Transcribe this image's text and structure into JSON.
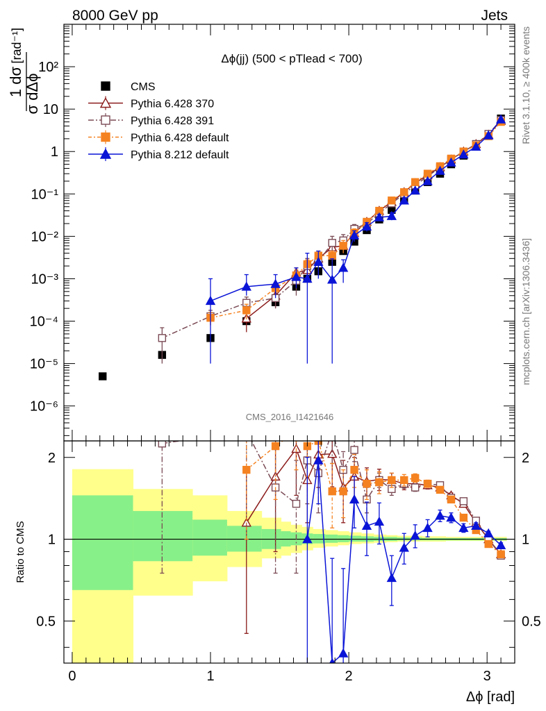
{
  "header": {
    "left_text": "8000 GeV pp",
    "right_text": "Jets"
  },
  "side_text": {
    "rivet": "Rivet 3.1.10, ≥ 400k events",
    "mcplots": "mcplots.cern.ch [arXiv:1306.3436]"
  },
  "watermark": "CMS_2016_I1421646",
  "colors": {
    "cms": "#000000",
    "pythia_6428_370": "#8b1a1a",
    "pythia_6428_391": "#7a4a55",
    "pythia_6428_default": "#f58220",
    "pythia_8212_default": "#0a14d6",
    "band_inner": "#88f088",
    "band_outer": "#ffff8c"
  },
  "chart_data": [
    {
      "type": "scatter",
      "panel": "main",
      "title": "Δϕ(jj) (500 < pTlead <  700)",
      "xlabel": "Δϕ [rad]",
      "ylabel_top": "1 dσ",
      "ylabel_bottom": "σ dΔϕ",
      "ylabel_unit": "[rad⁻¹]",
      "yscale": "log",
      "xlim": [
        -0.06,
        3.2
      ],
      "ylim": [
        1.5e-07,
        1000
      ],
      "ytick_labels": [
        "10⁻⁶",
        "10⁻⁵",
        "10⁻⁴",
        "10⁻³",
        "10⁻²",
        "10⁻¹",
        "1",
        "10",
        "10²"
      ],
      "legend_position": "top-left",
      "series": [
        {
          "name": "CMS",
          "x": [
            0.22,
            0.65,
            1.0,
            1.26,
            1.34,
            1.47,
            1.55,
            1.62,
            1.7,
            1.78,
            1.88,
            1.96,
            2.04,
            2.13,
            2.22,
            2.31,
            2.4,
            2.48,
            2.57,
            2.66,
            2.74,
            2.83,
            2.92,
            3.01,
            3.1
          ],
          "y": [
            5e-06,
            1.6e-05,
            4e-05,
            0.0001,
            null,
            0.00028,
            null,
            0.00065,
            0.001,
            0.0015,
            0.0025,
            0.0045,
            0.0075,
            0.014,
            0.025,
            0.042,
            0.07,
            0.12,
            0.19,
            0.3,
            0.5,
            0.8,
            1.3,
            2.4,
            6.0
          ]
        },
        {
          "name": "Pythia 6.428 370",
          "x": [
            1.26,
            1.47,
            1.62,
            1.7,
            1.78,
            1.88,
            1.96,
            2.04,
            2.13,
            2.22,
            2.31,
            2.4,
            2.48,
            2.57,
            2.66,
            2.74,
            2.83,
            2.92,
            3.01,
            3.1
          ],
          "y": [
            0.000115,
            0.0004,
            0.0014,
            0.0016,
            0.003,
            0.0055,
            0.006,
            0.012,
            0.022,
            0.04,
            0.065,
            0.11,
            0.18,
            0.28,
            0.43,
            0.65,
            1.0,
            1.5,
            2.5,
            5.3
          ],
          "yerr_low": [
            6e-05,
            0.0002,
            0.0004,
            0.0006,
            0.001,
            0.002,
            0.002,
            0.003,
            0.004,
            0.006,
            0.008,
            0.01,
            0.01,
            0.02,
            0.03,
            0.04,
            0.05,
            0.08,
            0.1,
            0.2
          ],
          "yerr_high": [
            6e-05,
            0.0002,
            0.0004,
            0.0006,
            0.001,
            0.002,
            0.002,
            0.003,
            0.004,
            0.006,
            0.008,
            0.01,
            0.01,
            0.02,
            0.03,
            0.04,
            0.05,
            0.08,
            0.1,
            0.2
          ]
        },
        {
          "name": "Pythia 6.428 391",
          "x": [
            0.65,
            1.0,
            1.26,
            1.47,
            1.62,
            1.7,
            1.78,
            1.88,
            1.96,
            2.04,
            2.13,
            2.22,
            2.31,
            2.4,
            2.48,
            2.57,
            2.66,
            2.74,
            2.83,
            2.92,
            3.01,
            3.1
          ],
          "y": [
            4e-05,
            0.00013,
            0.00027,
            0.00035,
            0.0009,
            0.002,
            0.0025,
            0.007,
            0.008,
            0.015,
            0.02,
            0.035,
            0.06,
            0.1,
            0.16,
            0.26,
            0.42,
            0.65,
            1.0,
            1.5,
            2.6,
            5.5
          ],
          "yerr_low": [
            3e-05,
            5e-05,
            0.0001,
            0.00015,
            0.0005,
            0.001,
            0.0012,
            0.003,
            0.003,
            0.004,
            0.005,
            0.006,
            0.008,
            0.01,
            0.012,
            0.02,
            0.03,
            0.04,
            0.05,
            0.08,
            0.1,
            0.2
          ],
          "yerr_high": [
            3e-05,
            5e-05,
            0.0001,
            0.00015,
            0.0005,
            0.001,
            0.0012,
            0.003,
            0.003,
            0.004,
            0.005,
            0.006,
            0.008,
            0.01,
            0.012,
            0.02,
            0.03,
            0.04,
            0.05,
            0.08,
            0.1,
            0.2
          ]
        },
        {
          "name": "Pythia 6.428 default",
          "x": [
            1.0,
            1.26,
            1.47,
            1.62,
            1.7,
            1.78,
            1.88,
            1.96,
            2.04,
            2.13,
            2.22,
            2.31,
            2.4,
            2.48,
            2.57,
            2.66,
            2.74,
            2.83,
            2.92,
            3.01,
            3.1
          ],
          "y": [
            0.00012,
            0.00018,
            0.0006,
            0.0012,
            0.0022,
            0.0035,
            0.0035,
            0.006,
            0.012,
            0.022,
            0.04,
            0.07,
            0.11,
            0.19,
            0.3,
            0.45,
            0.68,
            1.0,
            1.4,
            2.3,
            5.0
          ],
          "yerr_low": [
            4e-05,
            7e-05,
            0.0002,
            0.0004,
            0.0006,
            0.001,
            0.001,
            0.002,
            0.003,
            0.004,
            0.006,
            0.008,
            0.01,
            0.012,
            0.02,
            0.03,
            0.04,
            0.05,
            0.08,
            0.1,
            0.2
          ],
          "yerr_high": [
            4e-05,
            7e-05,
            0.0002,
            0.0004,
            0.0006,
            0.001,
            0.001,
            0.002,
            0.003,
            0.004,
            0.006,
            0.008,
            0.01,
            0.012,
            0.02,
            0.03,
            0.04,
            0.05,
            0.08,
            0.1,
            0.2
          ]
        },
        {
          "name": "Pythia 8.212 default",
          "x": [
            1.0,
            1.26,
            1.47,
            1.62,
            1.7,
            1.78,
            1.88,
            1.96,
            2.04,
            2.13,
            2.22,
            2.31,
            2.4,
            2.48,
            2.57,
            2.66,
            2.74,
            2.83,
            2.92,
            3.01,
            3.1
          ],
          "y": [
            0.0003,
            0.00065,
            0.00075,
            0.0011,
            0.001,
            0.0025,
            0.00095,
            0.0018,
            0.0105,
            0.017,
            0.028,
            0.03,
            0.07,
            0.12,
            0.2,
            0.35,
            0.55,
            0.85,
            1.3,
            2.4,
            5.7
          ],
          "yerr_low": [
            0.00029,
            0.00025,
            0.0004,
            0.0005,
            0.00099,
            0.0015,
            0.00094,
            0.001,
            0.003,
            0.004,
            0.005,
            0.006,
            0.01,
            0.012,
            0.02,
            0.03,
            0.04,
            0.05,
            0.08,
            0.1,
            0.2
          ],
          "yerr_high": [
            0.0007,
            0.0006,
            0.0005,
            0.0007,
            0.003,
            0.002,
            0.002,
            0.001,
            0.003,
            0.004,
            0.005,
            0.006,
            0.01,
            0.012,
            0.02,
            0.03,
            0.04,
            0.05,
            0.08,
            0.1,
            0.2
          ]
        }
      ]
    },
    {
      "type": "line",
      "panel": "ratio",
      "ylabel": "Ratio to CMS",
      "xlabel": "Δϕ [rad]",
      "xlim": [
        -0.06,
        3.2
      ],
      "ylim": [
        0.35,
        2.3
      ],
      "ytick_labels": [
        "0.5",
        "1",
        "2"
      ],
      "xtick_labels": [
        "0",
        "1",
        "2",
        "3"
      ],
      "reference_line": 1,
      "bands": {
        "x_edges": [
          0.0,
          0.44,
          0.87,
          1.12,
          1.37,
          1.51,
          1.58,
          1.66,
          1.74,
          1.83,
          1.92,
          2.0,
          2.09,
          2.18,
          2.27,
          2.35,
          2.44,
          2.53,
          2.61,
          2.7,
          2.79,
          2.88,
          2.96,
          3.05,
          3.14
        ],
        "inner_low": [
          0.65,
          0.83,
          0.87,
          0.9,
          0.92,
          0.94,
          0.95,
          0.96,
          0.965,
          0.97,
          0.975,
          0.98,
          0.98,
          0.985,
          0.985,
          0.99,
          0.99,
          0.99,
          0.99,
          0.99,
          0.99,
          0.99,
          0.99,
          0.99
        ],
        "inner_high": [
          1.45,
          1.27,
          1.18,
          1.12,
          1.09,
          1.07,
          1.06,
          1.05,
          1.045,
          1.04,
          1.035,
          1.03,
          1.025,
          1.02,
          1.02,
          1.015,
          1.015,
          1.01,
          1.01,
          1.01,
          1.01,
          1.01,
          1.01,
          1.01
        ],
        "outer_low": [
          0.35,
          0.62,
          0.7,
          0.79,
          0.85,
          0.87,
          0.89,
          0.91,
          0.93,
          0.94,
          0.95,
          0.96,
          0.965,
          0.97,
          0.975,
          0.98,
          0.98,
          0.98,
          0.98,
          0.985,
          0.985,
          0.985,
          0.985,
          0.985
        ],
        "outer_high": [
          1.81,
          1.53,
          1.45,
          1.27,
          1.2,
          1.16,
          1.13,
          1.11,
          1.09,
          1.08,
          1.07,
          1.06,
          1.05,
          1.04,
          1.035,
          1.03,
          1.03,
          1.025,
          1.025,
          1.02,
          1.02,
          1.02,
          1.02,
          1.02
        ]
      },
      "series": [
        {
          "name": "Pythia 6.428 370",
          "x": [
            1.26,
            1.47,
            1.62,
            1.7,
            1.78,
            1.88,
            1.96,
            2.04,
            2.13,
            2.22,
            2.31,
            2.4,
            2.48,
            2.57,
            2.66,
            2.74,
            2.83,
            2.92,
            3.01,
            3.1
          ],
          "y": [
            1.15,
            1.7,
            2.15,
            1.65,
            2.05,
            2.06,
            1.55,
            1.7,
            1.63,
            1.66,
            1.65,
            1.6,
            1.6,
            1.58,
            1.55,
            1.45,
            1.35,
            1.15,
            1.0,
            0.88
          ],
          "yerr": [
            0.7,
            0.8,
            0.7,
            0.5,
            0.5,
            0.5,
            0.4,
            0.3,
            0.2,
            0.15,
            0.1,
            0.08,
            0.06,
            0.05,
            0.04,
            0.03,
            0.03,
            0.02,
            0.02,
            0.02
          ]
        },
        {
          "name": "Pythia 6.428 391",
          "x": [
            0.65,
            1.26,
            1.47,
            1.62,
            1.7,
            1.78,
            1.88,
            1.96,
            2.04,
            2.13,
            2.22,
            2.31,
            2.4,
            2.48,
            2.57,
            2.66,
            2.74,
            2.83,
            2.92,
            3.01,
            3.1
          ],
          "y": [
            2.25,
            2.5,
            1.55,
            1.35,
            1.95,
            1.75,
            2.5,
            1.8,
            2.13,
            1.4,
            1.65,
            1.53,
            1.6,
            1.55,
            1.6,
            1.58,
            1.42,
            1.38,
            1.17,
            1.0,
            0.87
          ],
          "yerr": [
            1.5,
            1.5,
            0.8,
            0.6,
            0.6,
            0.5,
            0.6,
            0.3,
            0.2,
            0.15,
            0.1,
            0.08,
            0.06,
            0.05,
            0.04,
            0.03,
            0.03,
            0.02,
            0.02,
            0.02,
            0.02
          ]
        },
        {
          "name": "Pythia 6.428 default",
          "x": [
            1.26,
            1.47,
            1.62,
            1.7,
            1.78,
            1.88,
            1.96,
            2.04,
            2.13,
            2.22,
            2.31,
            2.4,
            2.48,
            2.57,
            2.66,
            2.74,
            2.83,
            2.92,
            3.01,
            3.1
          ],
          "y": [
            1.8,
            2.2,
            2.5,
            2.2,
            2.3,
            1.5,
            1.5,
            1.8,
            1.6,
            1.62,
            1.65,
            1.65,
            1.68,
            1.6,
            1.52,
            1.4,
            1.2,
            1.08,
            0.96,
            0.88
          ],
          "yerr": [
            0.8,
            0.8,
            0.7,
            0.5,
            0.5,
            0.4,
            0.3,
            0.25,
            0.2,
            0.15,
            0.1,
            0.08,
            0.06,
            0.05,
            0.04,
            0.03,
            0.03,
            0.02,
            0.02,
            0.02
          ]
        },
        {
          "name": "Pythia 8.212 default",
          "x": [
            1.7,
            1.78,
            1.88,
            1.96,
            2.04,
            2.13,
            2.22,
            2.31,
            2.4,
            2.48,
            2.57,
            2.66,
            2.74,
            2.83,
            2.92,
            3.01,
            3.1
          ],
          "y": [
            1.0,
            1.95,
            0.35,
            0.38,
            1.4,
            1.12,
            1.16,
            0.72,
            0.93,
            1.03,
            1.1,
            1.22,
            1.2,
            1.1,
            1.12,
            1.05,
            0.95
          ],
          "yerr": [
            1.0,
            0.6,
            0.5,
            0.4,
            0.3,
            0.25,
            0.2,
            0.15,
            0.12,
            0.1,
            0.08,
            0.06,
            0.05,
            0.04,
            0.03,
            0.02,
            0.02
          ]
        }
      ]
    }
  ]
}
